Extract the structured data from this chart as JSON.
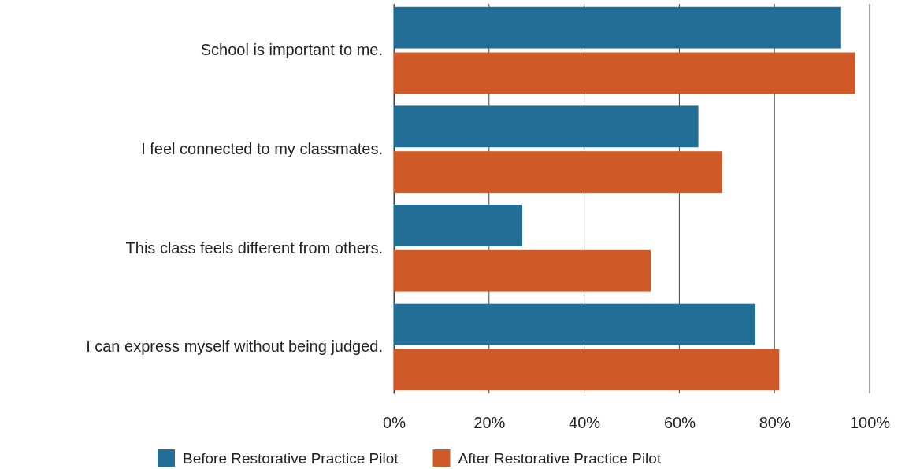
{
  "chart_data": {
    "type": "bar",
    "orientation": "horizontal",
    "categories": [
      "School is important to me.",
      "I feel connected to my classmates.",
      "This class feels different from others.",
      "I can express myself without being judged."
    ],
    "series": [
      {
        "name": "Before Restorative Practice Pilot",
        "color": "#236e96",
        "values": [
          94,
          64,
          27,
          76
        ]
      },
      {
        "name": "After Restorative Practice Pilot",
        "color": "#d05a27",
        "values": [
          97,
          69,
          54,
          81
        ]
      }
    ],
    "xlim": [
      0,
      100
    ],
    "xticks": [
      {
        "value": 0,
        "label": "0%"
      },
      {
        "value": 20,
        "label": "20%"
      },
      {
        "value": 40,
        "label": "40%"
      },
      {
        "value": 60,
        "label": "60%"
      },
      {
        "value": 80,
        "label": "80%"
      },
      {
        "value": 100,
        "label": "100%"
      }
    ],
    "grid": "x",
    "legend": "bottom"
  }
}
